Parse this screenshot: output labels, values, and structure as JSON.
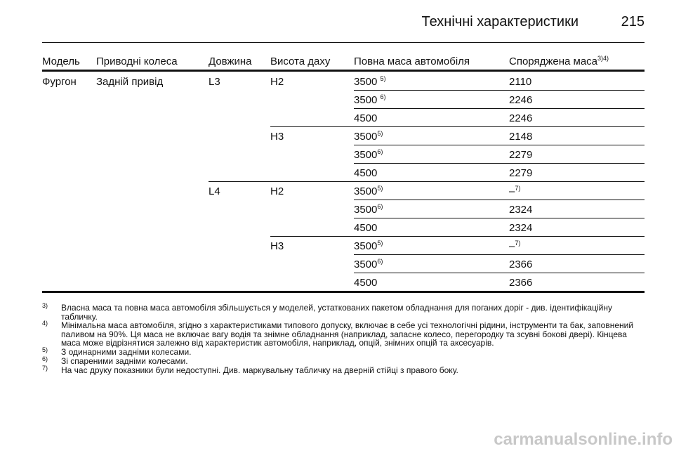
{
  "header": {
    "title": "Технічні характеристики",
    "page": "215"
  },
  "table": {
    "columns": [
      "Модель",
      "Приводні колеса",
      "Довжина",
      "Висота даху",
      "Повна маса автомобіля",
      "Споряджена маса"
    ],
    "columns_note": "3)4)",
    "rows": [
      {
        "model": "Фургон",
        "drive": "Задній привід",
        "length": "L3",
        "roof": "H2",
        "gross": "3500 ",
        "gross_note": "5)",
        "curb": "2110"
      },
      {
        "gross": "3500 ",
        "gross_note": "6)",
        "curb": "2246"
      },
      {
        "gross": "4500",
        "curb": "2246"
      },
      {
        "roof": "H3",
        "gross": "3500",
        "gross_note": "5)",
        "curb": "2148"
      },
      {
        "gross": "3500",
        "gross_note": "6)",
        "curb": "2279"
      },
      {
        "gross": "4500",
        "curb": "2279"
      },
      {
        "length": "L4",
        "roof": "H2",
        "gross": "3500",
        "gross_note": "5)",
        "curb": "–",
        "curb_note": "7)"
      },
      {
        "gross": "3500",
        "gross_note": "6)",
        "curb": "2324"
      },
      {
        "gross": "4500",
        "curb": "2324"
      },
      {
        "roof": "H3",
        "gross": "3500",
        "gross_note": "5)",
        "curb": "–",
        "curb_note": "7)"
      },
      {
        "gross": "3500",
        "gross_note": "6)",
        "curb": "2366"
      },
      {
        "gross": "4500",
        "curb": "2366"
      }
    ]
  },
  "footnotes": [
    {
      "marker": "3)",
      "text": "Власна маса та повна маса автомобіля збільшується у моделей, устаткованих пакетом обладнання для поганих доріг - див. ідентифікаційну табличку."
    },
    {
      "marker": "4)",
      "text": "Мінімальна маса автомобіля, згідно з характеристиками типового допуску, включає в себе усі технологічні рідини, інструменти та бак, заповнений паливом на 90%. Ця маса не включає вагу водія та знімне обладнання (наприклад, запасне колесо, перегородку та зсувні бокові двері). Кінцева маса може відрізнятися залежно від характеристик автомобіля, наприклад, опцій, знімних опцій та аксесуарів."
    },
    {
      "marker": "5)",
      "text": "З одинарними задніми колесами."
    },
    {
      "marker": "6)",
      "text": "Зі спареними задніми колесами."
    },
    {
      "marker": "7)",
      "text": "На час друку показники були недоступні. Див. маркувальну табличку на дверній стійці з правого боку."
    }
  ],
  "watermark": "carmanualsonline.info"
}
